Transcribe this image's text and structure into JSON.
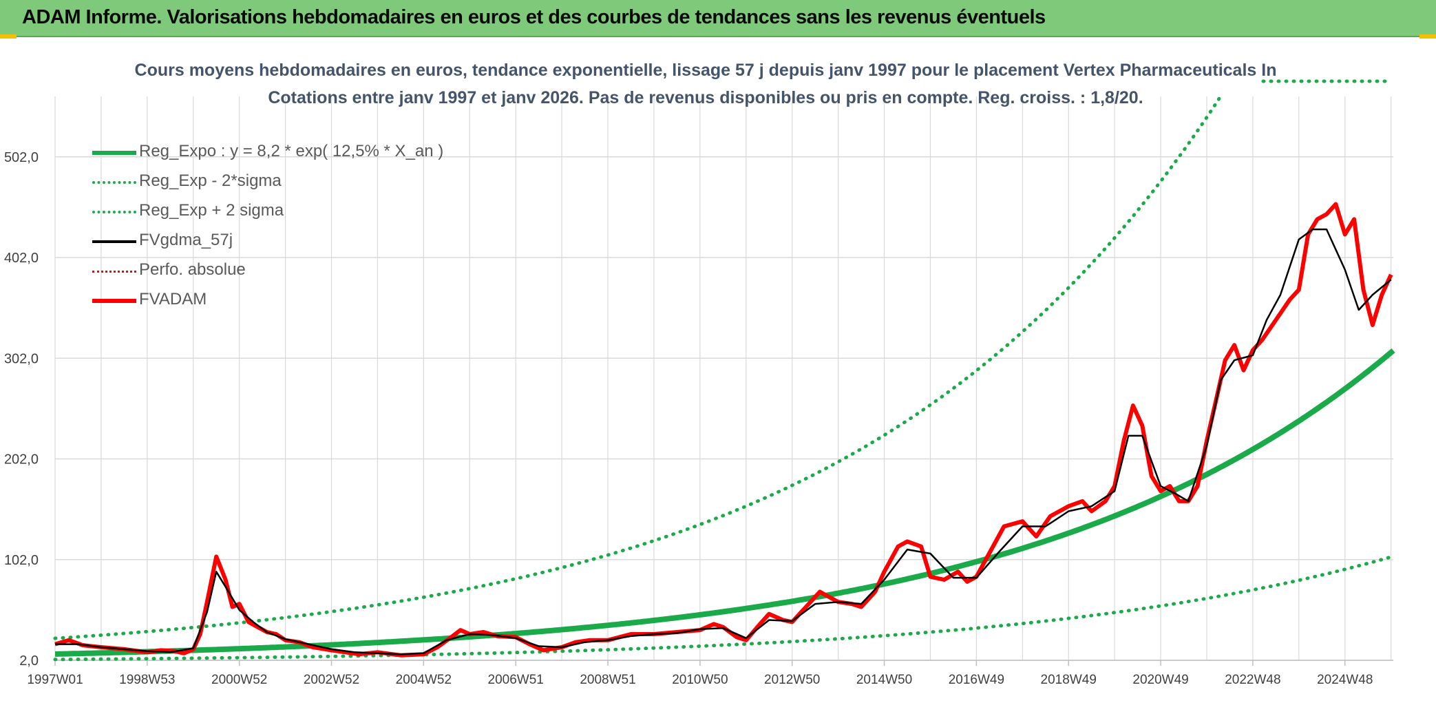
{
  "header": {
    "title": "ADAM Informe. Valorisations hebdomadaires en euros et des courbes de tendances sans les revenus éventuels"
  },
  "colors": {
    "header_bg": "#7fc97b",
    "green": "#1aaa4a",
    "black": "#000000",
    "red": "#ff0000",
    "grid": "#d9d9d9",
    "title_text": "#44546a"
  },
  "chart_data": {
    "type": "line",
    "title": "Cours moyens hebdomadaires en euros, tendance exponentielle, lissage 57 j depuis janv 1997 pour le placement Vertex Pharmaceuticals In",
    "subtitle": "Cotations entre janv 1997 et janv 2026. Pas de revenus disponibles ou pris en compte. Reg. croiss. : 1,8/20.",
    "xlabel": "",
    "ylabel": "",
    "x_range": [
      1997.0,
      2026.05
    ],
    "ylim": [
      2.0,
      562.0
    ],
    "y_ticks": [
      2.0,
      102.0,
      202.0,
      302.0,
      402.0,
      502.0
    ],
    "y_tick_labels": [
      "2,0",
      "102,0",
      "202,0",
      "302,0",
      "402,0",
      "502,0"
    ],
    "x_ticks": [
      1997.0,
      1999.0,
      2001.0,
      2003.0,
      2005.0,
      2007.0,
      2009.0,
      2011.0,
      2013.0,
      2015.0,
      2017.0,
      2019.0,
      2021.0,
      2023.0,
      2025.0
    ],
    "x_tick_labels": [
      "1997W01",
      "1998W53",
      "2000W52",
      "2002W52",
      "2004W52",
      "2006W51",
      "2008W51",
      "2010W50",
      "2012W50",
      "2014W50",
      "2016W49",
      "2018W49",
      "2020W49",
      "2022W48",
      "2024W48"
    ],
    "grid": true,
    "legend_position": "top-left",
    "legend": [
      {
        "label": "Reg_Expo : y = 8,2 * exp( 12,5% *  X_an )",
        "color": "#1aaa4a",
        "style": "solid-thick"
      },
      {
        "label": "Reg_Exp - 2*sigma",
        "color": "#1aaa4a",
        "style": "dotted"
      },
      {
        "label": "Reg_Exp + 2 sigma",
        "color": "#1aaa4a",
        "style": "dotted"
      },
      {
        "label": "FVgdma_57j",
        "color": "#000000",
        "style": "solid"
      },
      {
        "label": "Perfo. absolue",
        "color": "#ff0000",
        "style": "dotted"
      },
      {
        "label": "FVADAM",
        "color": "#ff0000",
        "style": "solid-thick"
      }
    ],
    "trend": {
      "a": 8.2,
      "b": 0.125,
      "sigma_lower_factor": 0.34,
      "sigma_upper_factor": 2.9
    },
    "series": [
      {
        "name": "FVADAM",
        "x": [
          1997.0,
          1997.3,
          1997.6,
          1998.0,
          1998.5,
          1999.0,
          1999.3,
          1999.6,
          1999.8,
          2000.0,
          2000.15,
          2000.3,
          2000.5,
          2000.7,
          2000.85,
          2001.0,
          2001.2,
          2001.4,
          2001.6,
          2001.8,
          2002.0,
          2002.3,
          2002.6,
          2003.0,
          2003.3,
          2003.6,
          2004.0,
          2004.5,
          2005.0,
          2005.3,
          2005.6,
          2005.8,
          2006.0,
          2006.3,
          2006.6,
          2007.0,
          2007.3,
          2007.6,
          2008.0,
          2008.3,
          2008.6,
          2009.0,
          2009.5,
          2010.0,
          2010.5,
          2011.0,
          2011.3,
          2011.5,
          2011.8,
          2012.0,
          2012.3,
          2012.5,
          2012.8,
          2013.0,
          2013.3,
          2013.6,
          2014.0,
          2014.3,
          2014.5,
          2014.8,
          2015.0,
          2015.3,
          2015.5,
          2015.8,
          2016.0,
          2016.3,
          2016.6,
          2016.8,
          2017.0,
          2017.3,
          2017.6,
          2018.0,
          2018.3,
          2018.6,
          2019.0,
          2019.3,
          2019.5,
          2019.8,
          2020.0,
          2020.2,
          2020.4,
          2020.6,
          2020.8,
          2021.0,
          2021.2,
          2021.4,
          2021.6,
          2021.8,
          2022.0,
          2022.2,
          2022.4,
          2022.6,
          2022.8,
          2023.0,
          2023.2,
          2023.5,
          2023.8,
          2024.0,
          2024.2,
          2024.4,
          2024.6,
          2024.8,
          2025.0,
          2025.2,
          2025.4,
          2025.6,
          2025.8,
          2026.0
        ],
        "values": [
          18,
          22,
          17,
          15,
          13,
          10,
          12,
          11,
          9,
          13,
          28,
          60,
          105,
          82,
          55,
          58,
          40,
          35,
          30,
          28,
          22,
          20,
          15,
          12,
          10,
          8,
          10,
          7,
          8,
          15,
          25,
          32,
          28,
          30,
          26,
          25,
          18,
          12,
          15,
          20,
          22,
          22,
          28,
          28,
          30,
          32,
          38,
          35,
          25,
          22,
          38,
          48,
          42,
          40,
          55,
          70,
          60,
          58,
          55,
          70,
          90,
          115,
          120,
          115,
          85,
          82,
          90,
          80,
          85,
          110,
          135,
          140,
          125,
          145,
          155,
          160,
          150,
          160,
          175,
          220,
          255,
          235,
          185,
          170,
          175,
          160,
          160,
          175,
          220,
          260,
          300,
          315,
          290,
          310,
          320,
          340,
          360,
          370,
          425,
          440,
          445,
          455,
          425,
          440,
          370,
          335,
          365,
          385
        ]
      },
      {
        "name": "FVgdma_57j",
        "x": [
          1997.0,
          1997.5,
          1998.0,
          1998.5,
          1999.0,
          1999.5,
          2000.0,
          2000.3,
          2000.5,
          2000.7,
          2001.0,
          2001.3,
          2001.6,
          2002.0,
          2002.5,
          2003.0,
          2003.5,
          2004.0,
          2004.5,
          2005.0,
          2005.5,
          2006.0,
          2006.5,
          2007.0,
          2007.5,
          2008.0,
          2008.5,
          2009.0,
          2009.5,
          2010.0,
          2010.5,
          2011.0,
          2011.5,
          2012.0,
          2012.5,
          2013.0,
          2013.5,
          2014.0,
          2014.5,
          2015.0,
          2015.5,
          2016.0,
          2016.5,
          2017.0,
          2017.5,
          2018.0,
          2018.5,
          2019.0,
          2019.5,
          2020.0,
          2020.3,
          2020.6,
          2021.0,
          2021.3,
          2021.6,
          2022.0,
          2022.3,
          2022.6,
          2023.0,
          2023.3,
          2023.6,
          2024.0,
          2024.3,
          2024.6,
          2025.0,
          2025.3,
          2025.6,
          2026.0
        ],
        "values": [
          18,
          18,
          15,
          13,
          11,
          10,
          14,
          50,
          90,
          75,
          52,
          40,
          30,
          23,
          18,
          13,
          10,
          9,
          8,
          9,
          22,
          28,
          27,
          24,
          16,
          15,
          20,
          22,
          26,
          28,
          29,
          33,
          34,
          24,
          42,
          41,
          58,
          60,
          58,
          82,
          112,
          108,
          84,
          84,
          110,
          135,
          135,
          150,
          155,
          170,
          225,
          225,
          175,
          168,
          160,
          215,
          280,
          300,
          305,
          340,
          365,
          420,
          430,
          430,
          390,
          350,
          365,
          380
        ]
      }
    ]
  }
}
